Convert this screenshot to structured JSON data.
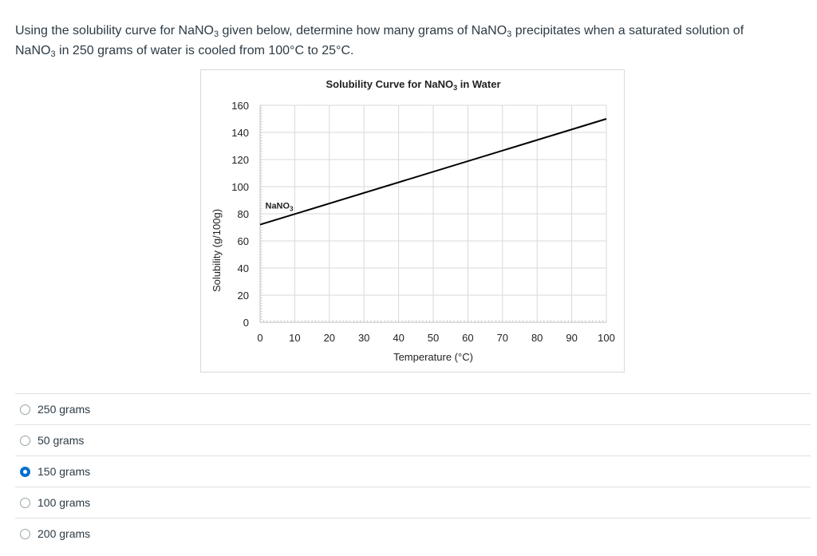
{
  "question": {
    "part1": "Using the solubility curve for NaNO",
    "sub1": "3",
    "part2": " given below, determine how many grams of NaNO",
    "sub2": "3",
    "part3": " precipitates when a saturated solution of NaNO",
    "sub3": "3",
    "part4": " in 250 grams of water is cooled from 100°C to 25°C."
  },
  "chart_data": {
    "type": "line",
    "title_main": "Solubility Curve for NaNO",
    "title_sub": "3",
    "title_end": " in Water",
    "xlabel": "Temperature (°C)",
    "ylabel": "Solubility (g/100g)",
    "xlim": [
      0,
      100
    ],
    "ylim": [
      0,
      160
    ],
    "x_ticks": [
      0,
      10,
      20,
      30,
      40,
      50,
      60,
      70,
      80,
      90,
      100
    ],
    "y_ticks": [
      0,
      20,
      40,
      60,
      80,
      100,
      120,
      140,
      160
    ],
    "grid": true,
    "series": [
      {
        "label_main": "NaNO",
        "label_sub": "3",
        "x": [
          0,
          100
        ],
        "y": [
          72,
          150
        ]
      }
    ],
    "colors": {
      "line": "#000000",
      "grid": "#d9d9d9",
      "axis": "#bfbfbf"
    }
  },
  "answers": [
    {
      "label": "250 grams",
      "selected": false
    },
    {
      "label": "50 grams",
      "selected": false
    },
    {
      "label": "150 grams",
      "selected": true
    },
    {
      "label": "100 grams",
      "selected": false
    },
    {
      "label": "200 grams",
      "selected": false
    }
  ],
  "colors": {
    "selected_radio": "#0770cc",
    "text": "#2d3b45"
  }
}
